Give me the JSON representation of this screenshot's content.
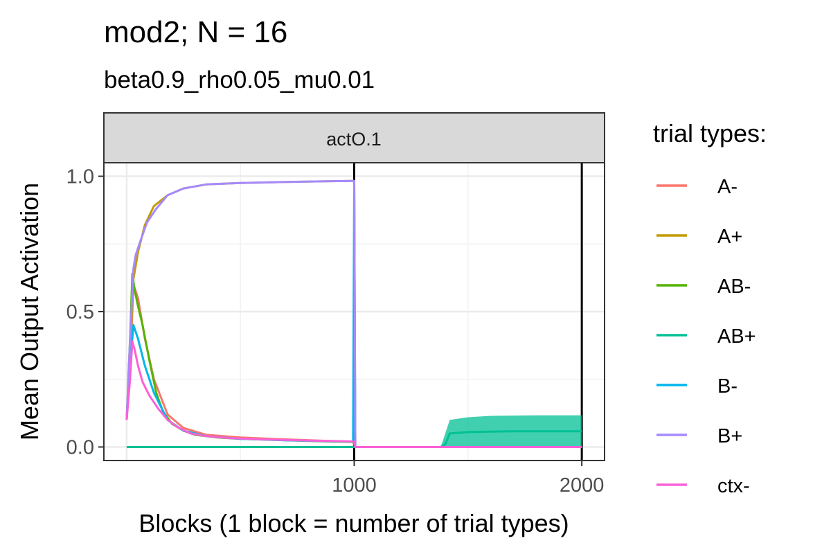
{
  "chart_data": {
    "type": "line",
    "title": "mod2; N = 16",
    "subtitle": "beta0.9_rho0.05_mu0.01",
    "facet_label": "actO.1",
    "xlabel": "Blocks (1 block = number of trial types)",
    "ylabel": "Mean Output Activation",
    "xlim": [
      -100,
      2100
    ],
    "ylim": [
      -0.05,
      1.05
    ],
    "x_ticks": [
      1000,
      2000
    ],
    "x_tick_labels": [
      "1000",
      "2000"
    ],
    "y_ticks": [
      0.0,
      0.5,
      1.0
    ],
    "y_tick_labels": [
      "0.0",
      "0.5",
      "1.0"
    ],
    "vlines": [
      1000,
      2000
    ],
    "grid": true,
    "legend": {
      "title": "trial types:",
      "position": "right",
      "items": [
        {
          "label": "A-",
          "color": "#F8766D"
        },
        {
          "label": "A+",
          "color": "#C49A00"
        },
        {
          "label": "AB-",
          "color": "#53B400"
        },
        {
          "label": "AB+",
          "color": "#00C094"
        },
        {
          "label": "B-",
          "color": "#00B6EB"
        },
        {
          "label": "B+",
          "color": "#A58AFF"
        },
        {
          "label": "ctx-",
          "color": "#FB61D7"
        }
      ]
    },
    "series": [
      {
        "name": "A-",
        "color": "#F8766D",
        "x": [
          0,
          15,
          30,
          50,
          80,
          120,
          180,
          250,
          350,
          500,
          700,
          900,
          995,
          1005,
          1200,
          1400,
          1600,
          1800,
          2000
        ],
        "y": [
          0.1,
          0.3,
          0.6,
          0.55,
          0.4,
          0.25,
          0.12,
          0.07,
          0.045,
          0.035,
          0.028,
          0.022,
          0.02,
          0.0,
          0.0,
          0.0,
          0.0,
          0.0,
          0.0
        ]
      },
      {
        "name": "A+",
        "color": "#C49A00",
        "x": [
          0,
          15,
          30,
          50,
          80,
          120,
          180,
          250,
          350,
          500,
          700,
          900,
          1000,
          1005,
          1200,
          1400,
          1600,
          1800,
          2000
        ],
        "y": [
          0.1,
          0.35,
          0.62,
          0.72,
          0.82,
          0.89,
          0.93,
          0.955,
          0.97,
          0.975,
          0.979,
          0.982,
          0.983,
          0.0,
          0.0,
          0.0,
          0.0,
          0.0,
          0.0
        ]
      },
      {
        "name": "AB-",
        "color": "#53B400",
        "x": [
          0,
          15,
          25,
          35,
          50,
          70,
          100,
          130,
          160,
          200,
          250,
          300,
          400,
          500,
          700,
          900,
          995,
          1005,
          1200,
          1400,
          1600,
          1800,
          2000
        ],
        "y": [
          0.1,
          0.4,
          0.64,
          0.58,
          0.52,
          0.45,
          0.32,
          0.2,
          0.13,
          0.085,
          0.06,
          0.045,
          0.035,
          0.03,
          0.025,
          0.02,
          0.019,
          0.0,
          0.0,
          0.0,
          0.0,
          0.0,
          0.0
        ]
      },
      {
        "name": "AB+",
        "color": "#00C094",
        "x": [
          0,
          995,
          1005,
          1200,
          1380,
          1400,
          1420,
          1500,
          1600,
          1700,
          1800,
          1900,
          2000
        ],
        "y": [
          0.0,
          0.0,
          0.0,
          0.0,
          0.0,
          0.01,
          0.05,
          0.055,
          0.057,
          0.058,
          0.058,
          0.058,
          0.058
        ],
        "band_low": [
          0.0,
          0.0,
          0.0,
          0.0,
          0.0,
          0.0,
          0.0,
          0.0,
          0.0,
          0.0,
          0.0,
          0.0,
          0.0
        ],
        "band_high": [
          0.0,
          0.0,
          0.0,
          0.0,
          0.0,
          0.05,
          0.1,
          0.11,
          0.115,
          0.116,
          0.117,
          0.117,
          0.117
        ]
      },
      {
        "name": "B-",
        "color": "#00B6EB",
        "x": [
          0,
          15,
          30,
          50,
          80,
          120,
          180,
          250,
          350,
          500,
          700,
          900,
          995,
          1000,
          1003,
          1005,
          1200,
          1400,
          1600,
          1800,
          2000
        ],
        "y": [
          0.1,
          0.3,
          0.45,
          0.4,
          0.3,
          0.2,
          0.1,
          0.06,
          0.04,
          0.03,
          0.025,
          0.021,
          0.02,
          0.98,
          0.3,
          0.0,
          0.0,
          0.0,
          0.0,
          0.0,
          0.0
        ]
      },
      {
        "name": "B+",
        "color": "#A58AFF",
        "x": [
          0,
          15,
          30,
          40,
          60,
          90,
          130,
          180,
          250,
          350,
          500,
          700,
          900,
          1000,
          1005,
          1200,
          1400,
          1600,
          1800,
          2000
        ],
        "y": [
          0.1,
          0.4,
          0.66,
          0.71,
          0.76,
          0.83,
          0.88,
          0.93,
          0.955,
          0.97,
          0.975,
          0.979,
          0.982,
          0.983,
          0.0,
          0.0,
          0.0,
          0.0,
          0.0,
          0.0
        ]
      },
      {
        "name": "ctx-",
        "color": "#FB61D7",
        "x": [
          0,
          15,
          25,
          35,
          50,
          70,
          100,
          140,
          180,
          220,
          280,
          350,
          450,
          600,
          800,
          1000,
          1005,
          1200,
          1400,
          1600,
          1800,
          2000
        ],
        "y": [
          0.1,
          0.25,
          0.39,
          0.36,
          0.3,
          0.24,
          0.19,
          0.14,
          0.1,
          0.075,
          0.05,
          0.04,
          0.033,
          0.028,
          0.024,
          0.02,
          0.0,
          0.0,
          0.0,
          0.0,
          0.0,
          0.0
        ]
      }
    ]
  }
}
